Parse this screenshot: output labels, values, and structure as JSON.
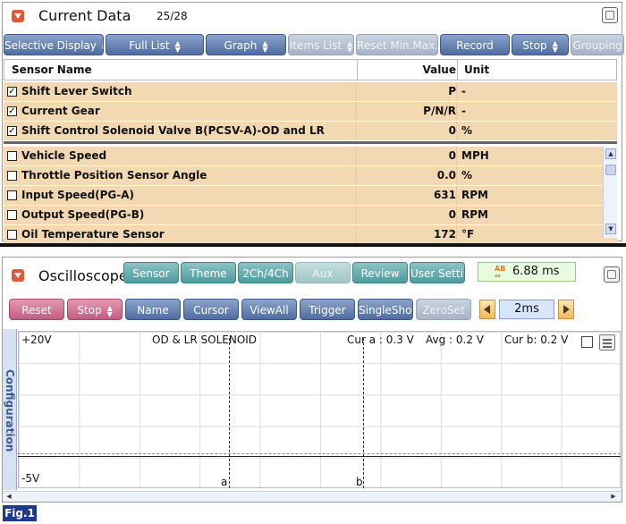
{
  "current_data": {
    "title": "Current Data",
    "count": "25/28",
    "toolbar": [
      {
        "label": "Selective Display",
        "arrows": true,
        "style": "blue"
      },
      {
        "label": "Full List",
        "arrows": true,
        "style": "blue"
      },
      {
        "label": "Graph",
        "arrows": true,
        "style": "blue"
      },
      {
        "label": "Items List",
        "arrows": true,
        "style": "gray"
      },
      {
        "label": "Reset Min.Max.",
        "arrows": false,
        "style": "gray"
      },
      {
        "label": "Record",
        "arrows": false,
        "style": "blue"
      },
      {
        "label": "Stop",
        "arrows": true,
        "style": "blue"
      },
      {
        "label": "Grouping",
        "arrows": false,
        "style": "gray"
      }
    ],
    "columns": {
      "name": "Sensor Name",
      "value": "Value",
      "unit": "Unit"
    },
    "fixed_rows": [
      {
        "name": "Shift Lever Switch",
        "value": "P",
        "unit": "-",
        "checked": true
      },
      {
        "name": "Current Gear",
        "value": "P/N/R",
        "unit": "-",
        "checked": true
      },
      {
        "name": "Shift Control Solenoid Valve B(PCSV-A)-OD and LR",
        "value": "0",
        "unit": "%",
        "checked": true
      }
    ],
    "rows": [
      {
        "name": "Vehicle Speed",
        "value": "0",
        "unit": "MPH",
        "checked": false
      },
      {
        "name": "Throttle Position Sensor Angle",
        "value": "0.0",
        "unit": "%",
        "checked": false
      },
      {
        "name": "Input Speed(PG-A)",
        "value": "631",
        "unit": "RPM",
        "checked": false
      },
      {
        "name": "Output Speed(PG-B)",
        "value": "0",
        "unit": "RPM",
        "checked": false
      },
      {
        "name": "Oil Temperature Sensor",
        "value": "172",
        "unit": "°F",
        "checked": false
      }
    ]
  },
  "oscilloscope": {
    "title": "Oscilloscope",
    "toolbar1": [
      {
        "label": "Sensor",
        "style": "teal"
      },
      {
        "label": "Theme",
        "style": "teal"
      },
      {
        "label": "2Ch/4Ch",
        "style": "teal"
      },
      {
        "label": "Aux",
        "style": "teal-dis"
      },
      {
        "label": "Review",
        "style": "teal"
      },
      {
        "label": "User Setting",
        "style": "teal"
      }
    ],
    "time_readout": "6.88 ms",
    "toolbar2": [
      {
        "label": "Reset",
        "style": "pink",
        "arrows": false
      },
      {
        "label": "Stop",
        "style": "pink",
        "arrows": true
      },
      {
        "label": "Name",
        "style": "blue",
        "arrows": false
      },
      {
        "label": "Cursor",
        "style": "blue",
        "arrows": false
      },
      {
        "label": "ViewAll",
        "style": "blue",
        "arrows": false
      },
      {
        "label": "Trigger",
        "style": "blue",
        "arrows": false
      },
      {
        "label": "SingleShot",
        "style": "blue",
        "arrows": false
      },
      {
        "label": "ZeroSet",
        "style": "gray",
        "arrows": false
      }
    ],
    "time_div": "2ms",
    "config_label": "Configuration",
    "screen": {
      "top_label": "+20V",
      "bottom_label": "-5V",
      "channel_title": "OD & LR SOLENOID",
      "cursor_a_reading": "Cur a : 0.3 V",
      "avg_reading": "Avg : 0.2 V",
      "cursor_b_reading": "Cur b: 0.2 V",
      "cursor_a_label": "a",
      "cursor_b_label": "b"
    }
  },
  "figure_label": "Fig.1"
}
